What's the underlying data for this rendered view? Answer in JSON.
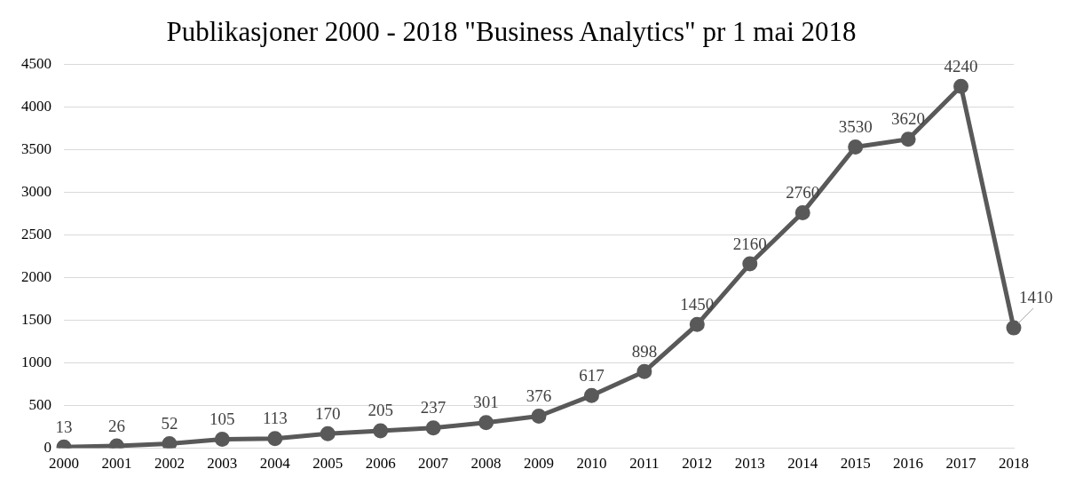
{
  "chart_data": {
    "type": "line",
    "title": "Publikasjoner 2000 - 2018 \"Business Analytics\" pr 1 mai 2018",
    "categories": [
      "2000",
      "2001",
      "2002",
      "2003",
      "2004",
      "2005",
      "2006",
      "2007",
      "2008",
      "2009",
      "2010",
      "2011",
      "2012",
      "2013",
      "2014",
      "2015",
      "2016",
      "2017",
      "2018"
    ],
    "series": [
      {
        "color": "#595959",
        "values": [
          13,
          26,
          52,
          105,
          113,
          170,
          205,
          237,
          301,
          376,
          617,
          898,
          1450,
          2160,
          2760,
          3530,
          3620,
          4240,
          1410
        ]
      }
    ],
    "ylim": [
      0,
      4500
    ],
    "yticks": [
      0,
      500,
      1000,
      1500,
      2000,
      2500,
      3000,
      3500,
      4000,
      4500
    ],
    "grid": "y",
    "marker": "circle",
    "line_style": "solid",
    "data_labels": true,
    "legend": false
  }
}
